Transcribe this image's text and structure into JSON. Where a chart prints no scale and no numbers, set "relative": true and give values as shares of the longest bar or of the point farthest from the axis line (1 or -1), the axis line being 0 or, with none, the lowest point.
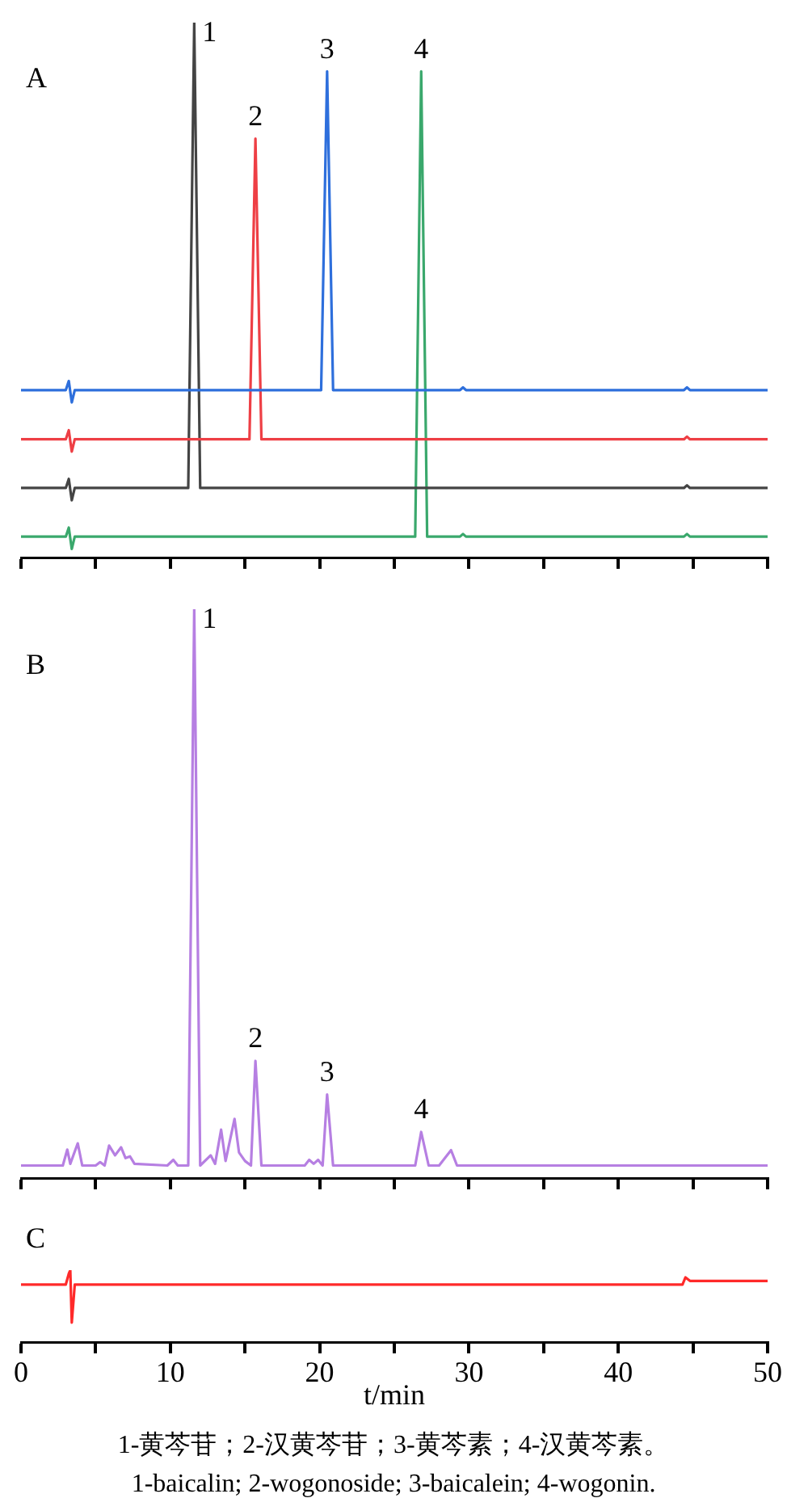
{
  "chart_data": [
    {
      "type": "line",
      "title": "A",
      "relative": true,
      "tick_labels": false,
      "xlim": [
        0,
        50
      ],
      "xticks": [
        {
          "value": 0,
          "label": null
        },
        {
          "value": 5,
          "label": null
        },
        {
          "value": 10,
          "label": null
        },
        {
          "value": 15,
          "label": null
        },
        {
          "value": 20,
          "label": null
        },
        {
          "value": 25,
          "label": null
        },
        {
          "value": 30,
          "label": null
        },
        {
          "value": 35,
          "label": null
        },
        {
          "value": 40,
          "label": null
        },
        {
          "value": 45,
          "label": null
        },
        {
          "value": 50,
          "label": null
        }
      ],
      "series": [
        {
          "color": "#2e6fdc",
          "x": [
            0,
            3.0,
            3.2,
            3.4,
            3.6,
            20.1,
            20.5,
            20.9,
            29.4,
            29.6,
            29.8,
            44.4,
            44.6,
            44.8,
            50
          ],
          "values": [
            0.313,
            0.313,
            0.33,
            0.29,
            0.313,
            0.313,
            0.909,
            0.313,
            0.313,
            0.318,
            0.313,
            0.313,
            0.318,
            0.313,
            0.313
          ]
        },
        {
          "color": "#ee3f45",
          "x": [
            0,
            3.0,
            3.2,
            3.4,
            3.6,
            15.3,
            15.7,
            16.1,
            44.4,
            44.6,
            44.8,
            50
          ],
          "values": [
            0.221,
            0.221,
            0.238,
            0.198,
            0.221,
            0.221,
            0.783,
            0.221,
            0.221,
            0.226,
            0.221,
            0.221
          ]
        },
        {
          "color": "#444444",
          "x": [
            0,
            3.0,
            3.2,
            3.4,
            3.6,
            11.2,
            11.6,
            12.0,
            44.4,
            44.6,
            44.8,
            50
          ],
          "values": [
            0.13,
            0.13,
            0.147,
            0.107,
            0.13,
            0.13,
            1,
            0.13,
            0.13,
            0.135,
            0.13,
            0.13
          ]
        },
        {
          "color": "#3aa86c",
          "x": [
            0,
            3.0,
            3.2,
            3.4,
            3.6,
            26.4,
            26.8,
            27.2,
            29.4,
            29.6,
            29.8,
            44.4,
            44.6,
            44.8,
            50
          ],
          "values": [
            0.039,
            0.039,
            0.056,
            0.016,
            0.039,
            0.039,
            0.909,
            0.039,
            0.039,
            0.044,
            0.039,
            0.039,
            0.044,
            0.039,
            0.039
          ]
        }
      ],
      "annotations": [
        {
          "text": "1",
          "x": 11.6,
          "y": 1
        },
        {
          "text": "2",
          "x": 15.7,
          "y": 0.783
        },
        {
          "text": "3",
          "x": 20.5,
          "y": 0.909
        },
        {
          "text": "4",
          "x": 26.8,
          "y": 0.909
        }
      ]
    },
    {
      "type": "line",
      "title": "B",
      "relative": true,
      "tick_labels": false,
      "xlim": [
        0,
        50
      ],
      "xticks": [
        {
          "value": 0,
          "label": null
        },
        {
          "value": 5,
          "label": null
        },
        {
          "value": 10,
          "label": null
        },
        {
          "value": 15,
          "label": null
        },
        {
          "value": 20,
          "label": null
        },
        {
          "value": 25,
          "label": null
        },
        {
          "value": 30,
          "label": null
        },
        {
          "value": 35,
          "label": null
        },
        {
          "value": 40,
          "label": null
        },
        {
          "value": 45,
          "label": null
        },
        {
          "value": 50,
          "label": null
        }
      ],
      "series": [
        {
          "color": "#b67fe2",
          "x": [
            0,
            2.8,
            3.1,
            3.3,
            3.8,
            4.1,
            5.0,
            5.3,
            5.6,
            5.9,
            6.3,
            6.7,
            7.0,
            7.3,
            7.6,
            9.8,
            10.2,
            10.5,
            11.2,
            11.6,
            12.0,
            12.7,
            13.0,
            13.4,
            13.7,
            14.3,
            14.6,
            15.0,
            15.4,
            15.7,
            16.1,
            19.0,
            19.3,
            19.6,
            19.9,
            20.2,
            20.5,
            20.9,
            26.4,
            26.8,
            27.3,
            28.0,
            28.8,
            29.2,
            50
          ],
          "values": [
            0.022,
            0.022,
            0.05,
            0.025,
            0.061,
            0.022,
            0.022,
            0.028,
            0.022,
            0.057,
            0.04,
            0.054,
            0.035,
            0.038,
            0.025,
            0.022,
            0.032,
            0.022,
            0.022,
            1,
            0.022,
            0.04,
            0.025,
            0.085,
            0.03,
            0.104,
            0.045,
            0.03,
            0.022,
            0.206,
            0.022,
            0.022,
            0.032,
            0.025,
            0.032,
            0.022,
            0.147,
            0.022,
            0.022,
            0.081,
            0.022,
            0.022,
            0.049,
            0.022,
            0.022
          ]
        }
      ],
      "annotations": [
        {
          "text": "1",
          "x": 11.6,
          "y": 1
        },
        {
          "text": "2",
          "x": 15.7,
          "y": 0.206
        },
        {
          "text": "3",
          "x": 20.5,
          "y": 0.147
        },
        {
          "text": "4",
          "x": 26.8,
          "y": 0.081
        }
      ]
    },
    {
      "type": "line",
      "title": "C",
      "relative": true,
      "xlabel": "t/min",
      "xlim": [
        0,
        50
      ],
      "xticks": [
        0,
        {
          "value": 5,
          "label": null
        },
        10,
        {
          "value": 15,
          "label": null
        },
        20,
        {
          "value": 25,
          "label": null
        },
        30,
        {
          "value": 35,
          "label": null
        },
        40,
        {
          "value": 45,
          "label": null
        },
        50
      ],
      "series": [
        {
          "color": "#ff2a2a",
          "x": [
            0,
            3.0,
            3.2,
            3.3,
            3.4,
            3.6,
            44.3,
            44.5,
            44.8,
            50
          ],
          "values": [
            0.8,
            0.8,
            0.95,
            1,
            0.27,
            0.8,
            0.8,
            0.9,
            0.85,
            0.85
          ]
        }
      ],
      "annotations": [
        "1-黄芩苷；2-汉黄芩苷；3-黄芩素；4-汉黄芩素。",
        "1-baicalin; 2-wogonoside; 3-baicalein; 4-wogonin."
      ]
    }
  ]
}
